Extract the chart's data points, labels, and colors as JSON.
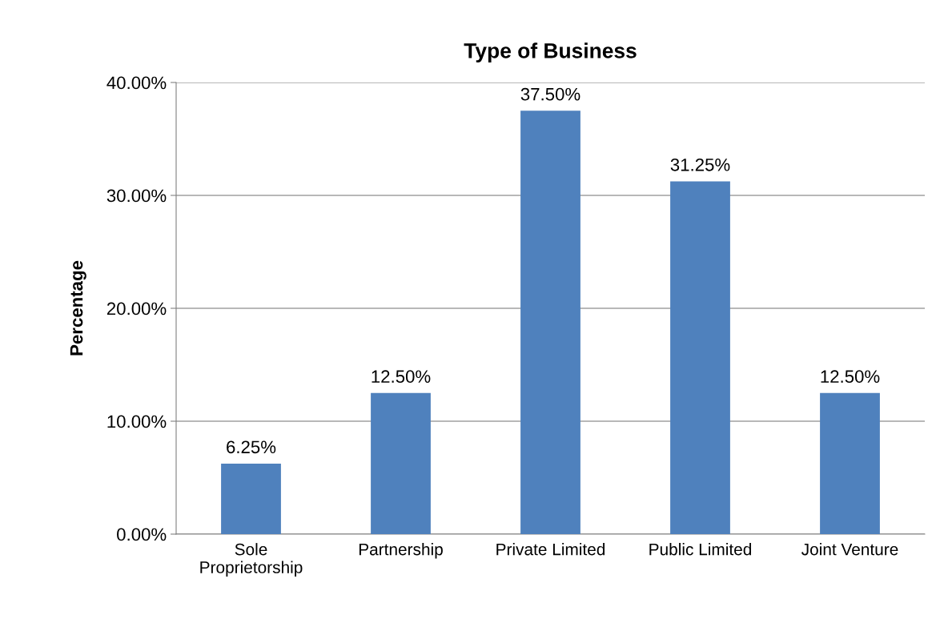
{
  "chart_data": {
    "type": "bar",
    "title": "Type of Business",
    "ylabel": "Percentage",
    "categories": [
      "Sole\nProprietorship",
      "Partnership",
      "Private Limited",
      "Public Limited",
      "Joint Venture"
    ],
    "values": [
      6.25,
      12.5,
      37.5,
      31.25,
      12.5
    ],
    "value_labels": [
      "6.25%",
      "12.50%",
      "37.50%",
      "31.25%",
      "12.50%"
    ],
    "color": "#4f81bd",
    "ylim": [
      0,
      40
    ],
    "yticks": [
      {
        "value": 0,
        "label": "0.00%"
      },
      {
        "value": 10,
        "label": "10.00%"
      },
      {
        "value": 20,
        "label": "20.00%"
      },
      {
        "value": 30,
        "label": "30.00%"
      },
      {
        "value": 40,
        "label": "40.00%"
      }
    ],
    "grid": "y"
  }
}
